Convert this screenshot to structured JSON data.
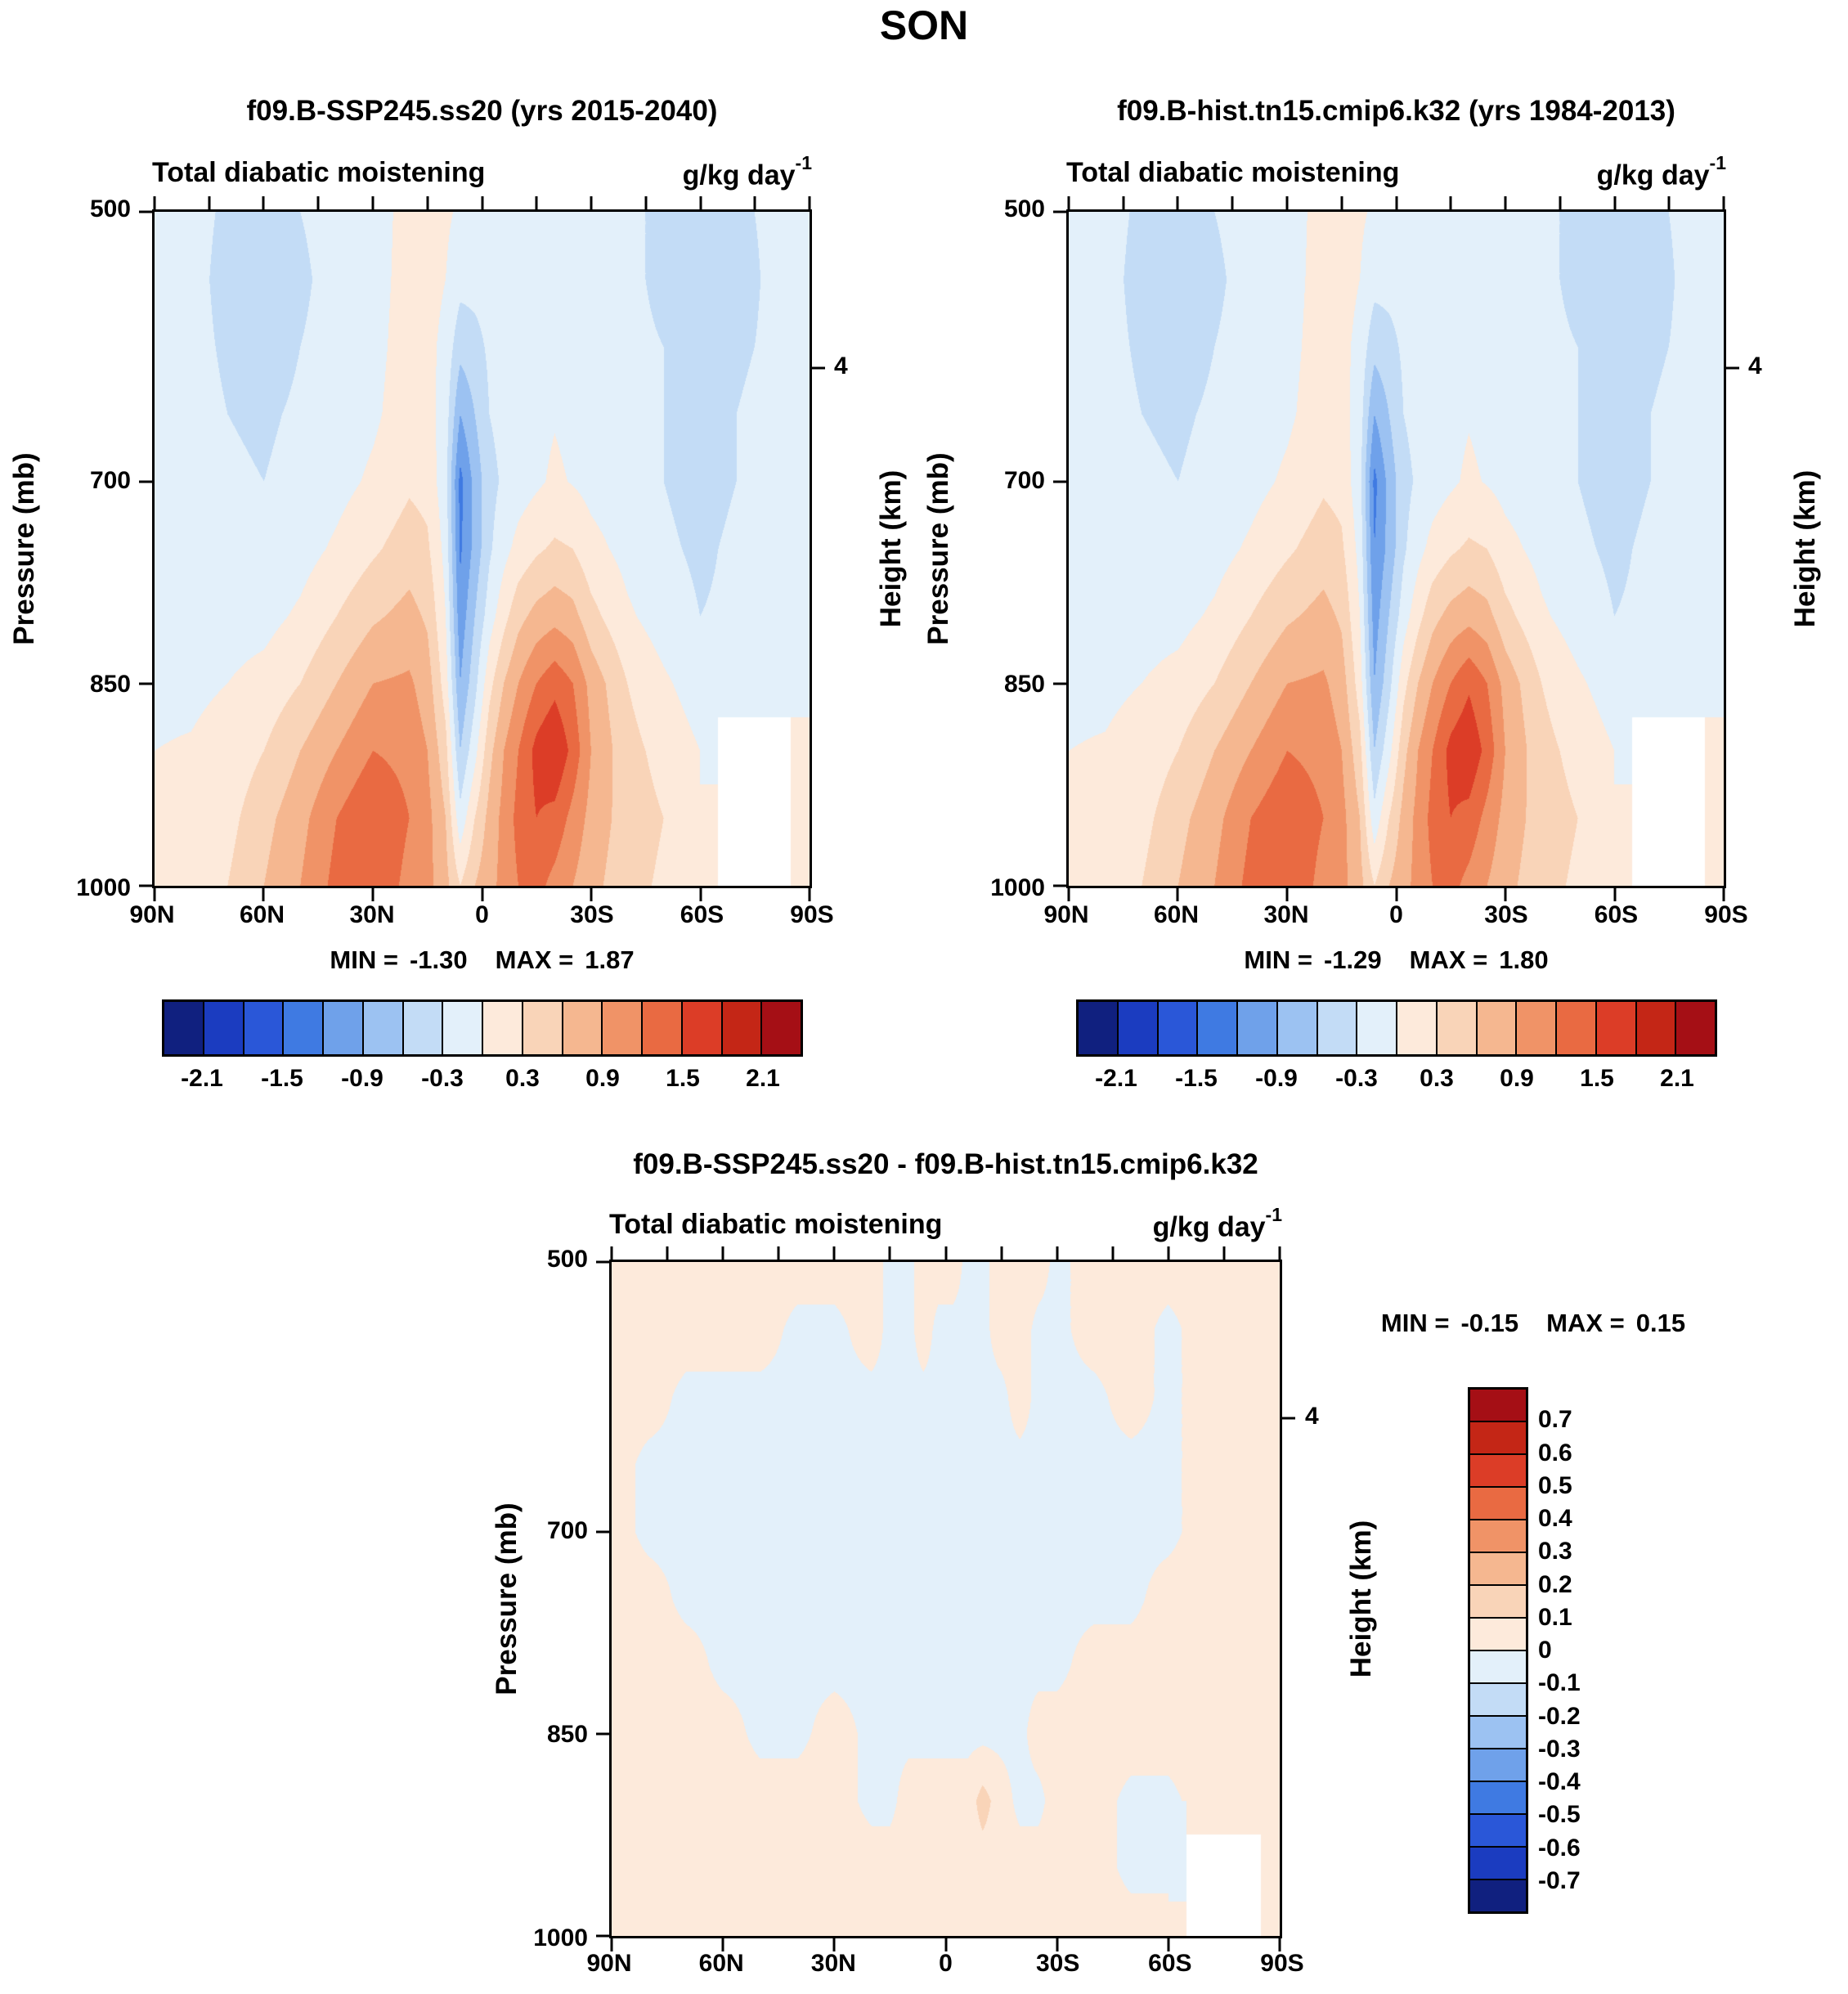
{
  "main_title": "SON",
  "palette16": [
    "#10207f",
    "#1b3cc0",
    "#2a57d8",
    "#3f7ae2",
    "#6fa1ea",
    "#9cc2f2",
    "#c3dcf6",
    "#e3f0fa",
    "#fdeadb",
    "#f9d4b8",
    "#f5b790",
    "#f09367",
    "#e96a42",
    "#dc3d27",
    "#c42616",
    "#a50f15"
  ],
  "labels": {
    "field_title": "Total diabatic moistening",
    "units_base": "g/kg day",
    "units_exponent": "-1",
    "min_label": "MIN =",
    "max_label": "MAX ="
  },
  "axes": {
    "pressure_axis_label": "Pressure (mb)",
    "height_axis_label": "Height (km)",
    "height_tick_label": "4",
    "height_tick_pressure": 616,
    "pressure_range": [
      500,
      1000
    ],
    "x_tick_labels": [
      "90N",
      "60N",
      "30N",
      "0",
      "30S",
      "60S",
      "90S"
    ],
    "x_tick_lats": [
      90,
      60,
      30,
      0,
      -30,
      -60,
      -90
    ],
    "y_tick_labels": [
      "500",
      "700",
      "850",
      "1000"
    ],
    "y_tick_pressures": [
      500,
      700,
      850,
      1000
    ],
    "top_minor_tick_count": 13
  },
  "colorbar_top": {
    "tick_labels": [
      "-2.1",
      "-1.5",
      "-0.9",
      "-0.3",
      "0.3",
      "0.9",
      "1.5",
      "2.1"
    ],
    "boundary_indices": [
      1,
      3,
      5,
      7,
      9,
      11,
      13,
      15
    ]
  },
  "colorbar_diff": {
    "tick_labels": [
      "0.7",
      "0.6",
      "0.5",
      "0.4",
      "0.3",
      "0.2",
      "0.1",
      "0",
      "-0.1",
      "-0.2",
      "-0.3",
      "-0.4",
      "-0.5",
      "-0.6",
      "-0.7"
    ]
  },
  "chart_data": [
    {
      "id": "left",
      "type": "heatmap",
      "title": "f09.B-SSP245.ss20 (yrs 2015-2040)",
      "subtitle": "Total diabatic moistening",
      "units": "g/kg day⁻¹",
      "min": -1.3,
      "max": 1.87,
      "min_text": "-1.30",
      "max_text": "1.87",
      "x_tick_labels": [
        "90N",
        "60N",
        "30N",
        "0",
        "30S",
        "60S",
        "90S"
      ],
      "y_tick_labels": [
        "500",
        "700",
        "850",
        "1000"
      ],
      "contour_levels": [
        -2.1,
        -1.8,
        -1.5,
        -1.2,
        -0.9,
        -0.6,
        -0.3,
        0,
        0.3,
        0.6,
        0.9,
        1.2,
        1.5,
        1.8,
        2.1
      ],
      "x_lats": [
        90,
        80,
        70,
        60,
        50,
        40,
        30,
        20,
        15,
        10,
        6,
        2,
        -2,
        -6,
        -10,
        -15,
        -20,
        -25,
        -30,
        -40,
        -50,
        -60,
        -70,
        -80,
        -90
      ],
      "y_pressures": [
        500,
        550,
        600,
        650,
        700,
        750,
        800,
        850,
        900,
        950,
        1000
      ],
      "values": [
        [
          -0.15,
          -0.2,
          -0.35,
          -0.45,
          -0.3,
          -0.2,
          -0.1,
          0.08,
          0.1,
          0.05,
          -0.05,
          -0.1,
          -0.15,
          -0.15,
          -0.15,
          -0.1,
          -0.08,
          -0.1,
          -0.15,
          -0.25,
          -0.35,
          -0.45,
          -0.35,
          -0.25,
          -0.2
        ],
        [
          -0.15,
          -0.2,
          -0.4,
          -0.5,
          -0.35,
          -0.2,
          -0.1,
          0.1,
          0.12,
          0,
          -0.2,
          -0.2,
          -0.18,
          -0.15,
          -0.15,
          -0.1,
          -0.08,
          -0.1,
          -0.15,
          -0.25,
          -0.35,
          -0.5,
          -0.4,
          -0.25,
          -0.2
        ],
        [
          -0.15,
          -0.2,
          -0.35,
          -0.45,
          -0.3,
          -0.2,
          -0.08,
          0.12,
          0.1,
          -0.1,
          -0.5,
          -0.4,
          -0.25,
          -0.2,
          -0.15,
          -0.1,
          -0.05,
          -0.1,
          -0.15,
          -0.25,
          -0.3,
          -0.45,
          -0.35,
          -0.25,
          -0.2
        ],
        [
          -0.12,
          -0.18,
          -0.3,
          -0.35,
          -0.25,
          -0.15,
          -0.05,
          0.15,
          0.12,
          -0.15,
          -0.9,
          -0.6,
          -0.3,
          -0.2,
          -0.15,
          -0.08,
          -0.02,
          -0.08,
          -0.12,
          -0.2,
          -0.3,
          -0.4,
          -0.3,
          -0.2,
          -0.15
        ],
        [
          -0.12,
          -0.15,
          -0.25,
          -0.3,
          -0.2,
          -0.1,
          0.05,
          0.25,
          0.2,
          -0.2,
          -1.3,
          -0.8,
          -0.4,
          -0.25,
          -0.15,
          -0.05,
          0.05,
          -0.02,
          -0.1,
          -0.2,
          -0.3,
          -0.4,
          -0.3,
          -0.2,
          -0.15
        ],
        [
          -0.1,
          -0.12,
          -0.2,
          -0.22,
          -0.12,
          0.05,
          0.25,
          0.45,
          0.35,
          -0.1,
          -1.25,
          -0.8,
          -0.35,
          -0.1,
          0.1,
          0.25,
          0.35,
          0.3,
          0.1,
          -0.1,
          -0.25,
          -0.35,
          -0.25,
          -0.18,
          -0.12
        ],
        [
          -0.08,
          -0.1,
          -0.12,
          -0.1,
          0.05,
          0.3,
          0.55,
          0.7,
          0.55,
          0,
          -1.1,
          -0.6,
          -0.15,
          0.2,
          0.5,
          0.7,
          0.8,
          0.7,
          0.4,
          0.05,
          -0.15,
          -0.3,
          -0.25,
          -0.15,
          -0.1
        ],
        [
          -0.05,
          -0.05,
          0,
          0.1,
          0.3,
          0.6,
          0.9,
          0.95,
          0.75,
          0.15,
          -0.9,
          -0.4,
          0.2,
          0.6,
          0.9,
          1.2,
          1.4,
          1.2,
          0.8,
          0.3,
          0.05,
          -0.15,
          -0.15,
          -0.1,
          -0.05
        ],
        [
          0,
          0.02,
          0.1,
          0.3,
          0.6,
          0.9,
          1.2,
          1.1,
          0.9,
          0.4,
          -0.6,
          -0.1,
          0.5,
          0.9,
          1.2,
          1.6,
          1.8,
          1.4,
          0.9,
          0.4,
          0.2,
          0,
          null,
          null,
          0.05
        ],
        [
          0.02,
          0.05,
          0.2,
          0.5,
          0.8,
          1.2,
          1.5,
          1.2,
          1.0,
          0.6,
          -0.2,
          0.3,
          0.7,
          1.0,
          1.3,
          1.5,
          1.4,
          1.1,
          0.8,
          0.45,
          0.3,
          0.1,
          null,
          null,
          0.05
        ],
        [
          0.05,
          0.1,
          0.3,
          0.6,
          0.9,
          1.3,
          1.45,
          1.1,
          1.0,
          0.7,
          0.3,
          0.6,
          0.8,
          1.0,
          1.2,
          1.3,
          1.1,
          0.9,
          0.7,
          0.4,
          0.25,
          0.1,
          null,
          null,
          0.05
        ]
      ]
    },
    {
      "id": "right",
      "type": "heatmap",
      "title": "f09.B-hist.tn15.cmip6.k32 (yrs 1984-2013)",
      "subtitle": "Total diabatic moistening",
      "units": "g/kg day⁻¹",
      "min": -1.29,
      "max": 1.8,
      "min_text": "-1.29",
      "max_text": "1.80",
      "x_tick_labels": [
        "90N",
        "60N",
        "30N",
        "0",
        "30S",
        "60S",
        "90S"
      ],
      "y_tick_labels": [
        "500",
        "700",
        "850",
        "1000"
      ],
      "contour_levels": [
        -2.1,
        -1.8,
        -1.5,
        -1.2,
        -0.9,
        -0.6,
        -0.3,
        0,
        0.3,
        0.6,
        0.9,
        1.2,
        1.5,
        1.8,
        2.1
      ],
      "x_lats": [
        90,
        80,
        70,
        60,
        50,
        40,
        30,
        20,
        15,
        10,
        6,
        2,
        -2,
        -6,
        -10,
        -15,
        -20,
        -25,
        -30,
        -40,
        -50,
        -60,
        -70,
        -80,
        -90
      ],
      "y_pressures": [
        500,
        550,
        600,
        650,
        700,
        750,
        800,
        850,
        900,
        950,
        1000
      ],
      "values": [
        [
          -0.15,
          -0.2,
          -0.35,
          -0.5,
          -0.3,
          -0.2,
          -0.1,
          0.08,
          0.1,
          0.05,
          -0.05,
          -0.1,
          -0.15,
          -0.15,
          -0.15,
          -0.1,
          -0.08,
          -0.1,
          -0.15,
          -0.25,
          -0.35,
          -0.45,
          -0.35,
          -0.25,
          -0.2
        ],
        [
          -0.15,
          -0.2,
          -0.4,
          -0.5,
          -0.35,
          -0.2,
          -0.1,
          0.1,
          0.12,
          0,
          -0.2,
          -0.2,
          -0.18,
          -0.15,
          -0.15,
          -0.1,
          -0.08,
          -0.1,
          -0.15,
          -0.25,
          -0.35,
          -0.5,
          -0.4,
          -0.25,
          -0.2
        ],
        [
          -0.15,
          -0.2,
          -0.35,
          -0.45,
          -0.3,
          -0.2,
          -0.08,
          0.12,
          0.1,
          -0.1,
          -0.5,
          -0.4,
          -0.25,
          -0.2,
          -0.15,
          -0.1,
          -0.05,
          -0.1,
          -0.15,
          -0.25,
          -0.3,
          -0.45,
          -0.35,
          -0.25,
          -0.2
        ],
        [
          -0.12,
          -0.18,
          -0.3,
          -0.35,
          -0.25,
          -0.15,
          -0.05,
          0.15,
          0.12,
          -0.15,
          -0.9,
          -0.6,
          -0.3,
          -0.2,
          -0.15,
          -0.08,
          -0.02,
          -0.08,
          -0.12,
          -0.2,
          -0.3,
          -0.4,
          -0.3,
          -0.2,
          -0.15
        ],
        [
          -0.12,
          -0.15,
          -0.25,
          -0.3,
          -0.2,
          -0.1,
          0.05,
          0.25,
          0.2,
          -0.2,
          -1.29,
          -0.8,
          -0.4,
          -0.25,
          -0.15,
          -0.05,
          0.05,
          -0.02,
          -0.1,
          -0.2,
          -0.3,
          -0.4,
          -0.3,
          -0.2,
          -0.15
        ],
        [
          -0.1,
          -0.12,
          -0.2,
          -0.22,
          -0.12,
          0.05,
          0.25,
          0.45,
          0.35,
          -0.1,
          -1.2,
          -0.8,
          -0.35,
          -0.1,
          0.1,
          0.25,
          0.35,
          0.3,
          0.1,
          -0.1,
          -0.25,
          -0.35,
          -0.25,
          -0.18,
          -0.12
        ],
        [
          -0.08,
          -0.1,
          -0.12,
          -0.1,
          0.05,
          0.3,
          0.55,
          0.7,
          0.55,
          0,
          -1.05,
          -0.6,
          -0.15,
          0.2,
          0.5,
          0.7,
          0.8,
          0.7,
          0.4,
          0.05,
          -0.15,
          -0.3,
          -0.25,
          -0.15,
          -0.1
        ],
        [
          -0.05,
          -0.05,
          0,
          0.1,
          0.3,
          0.6,
          0.9,
          0.95,
          0.75,
          0.15,
          -0.9,
          -0.4,
          0.2,
          0.6,
          0.9,
          1.2,
          1.45,
          1.2,
          0.8,
          0.3,
          0.05,
          -0.15,
          -0.15,
          -0.1,
          -0.05
        ],
        [
          0,
          0.02,
          0.1,
          0.3,
          0.6,
          0.9,
          1.2,
          1.1,
          0.9,
          0.4,
          -0.6,
          -0.1,
          0.5,
          0.9,
          1.2,
          1.6,
          1.75,
          1.4,
          0.9,
          0.4,
          0.2,
          0,
          null,
          null,
          0.05
        ],
        [
          0.02,
          0.05,
          0.2,
          0.5,
          0.8,
          1.2,
          1.45,
          1.2,
          1.0,
          0.6,
          -0.2,
          0.3,
          0.7,
          1.0,
          1.3,
          1.5,
          1.4,
          1.1,
          0.8,
          0.45,
          0.3,
          0.1,
          null,
          null,
          0.05
        ],
        [
          0.05,
          0.1,
          0.3,
          0.6,
          0.9,
          1.3,
          1.45,
          1.1,
          1.0,
          0.7,
          0.3,
          0.6,
          0.8,
          1.0,
          1.2,
          1.3,
          1.1,
          0.9,
          0.7,
          0.4,
          0.25,
          0.1,
          null,
          null,
          0.05
        ]
      ]
    },
    {
      "id": "diff",
      "type": "heatmap",
      "title": "f09.B-SSP245.ss20 - f09.B-hist.tn15.cmip6.k32",
      "subtitle": "Total diabatic moistening",
      "units": "g/kg day⁻¹",
      "min": -0.15,
      "max": 0.15,
      "min_text": "-0.15",
      "max_text": "0.15",
      "x_tick_labels": [
        "90N",
        "60N",
        "30N",
        "0",
        "30S",
        "60S",
        "90S"
      ],
      "y_tick_labels": [
        "500",
        "700",
        "850",
        "1000"
      ],
      "contour_levels": [
        -0.7,
        -0.6,
        -0.5,
        -0.4,
        -0.3,
        -0.2,
        -0.1,
        0,
        0.1,
        0.2,
        0.3,
        0.4,
        0.5,
        0.6,
        0.7
      ],
      "x_lats": [
        90,
        80,
        70,
        60,
        50,
        40,
        30,
        20,
        15,
        10,
        6,
        2,
        -2,
        -6,
        -10,
        -15,
        -20,
        -25,
        -30,
        -40,
        -50,
        -60,
        -70,
        -80,
        -90
      ],
      "y_pressures": [
        500,
        550,
        600,
        650,
        700,
        750,
        800,
        850,
        900,
        950,
        1000
      ],
      "values": [
        [
          0.05,
          0.05,
          0.05,
          0.05,
          0.05,
          0.05,
          0.05,
          0.05,
          -0.03,
          -0.03,
          0.05,
          0.05,
          0.05,
          -0.03,
          -0.03,
          0.05,
          0.05,
          0.05,
          -0.03,
          0.05,
          0.05,
          0.05,
          0.05,
          0.05,
          0.05
        ],
        [
          0.05,
          0.05,
          0.05,
          0.05,
          0.05,
          -0.03,
          -0.03,
          0.05,
          -0.03,
          -0.03,
          0.05,
          -0.03,
          -0.03,
          -0.03,
          -0.03,
          0.05,
          0.05,
          -0.03,
          -0.03,
          0.05,
          0.05,
          -0.03,
          0.05,
          0.05,
          0.05
        ],
        [
          0.05,
          0.05,
          -0.03,
          -0.03,
          -0.03,
          -0.03,
          -0.03,
          -0.03,
          -0.03,
          -0.03,
          -0.03,
          -0.03,
          -0.03,
          -0.03,
          -0.03,
          -0.03,
          0.05,
          -0.03,
          -0.03,
          -0.03,
          0.05,
          -0.03,
          0.05,
          0.05,
          0.05
        ],
        [
          0.05,
          -0.03,
          -0.03,
          -0.03,
          -0.03,
          -0.03,
          -0.03,
          -0.03,
          -0.03,
          -0.03,
          -0.03,
          -0.03,
          -0.03,
          -0.03,
          -0.03,
          -0.03,
          -0.03,
          -0.03,
          -0.03,
          -0.03,
          -0.03,
          -0.03,
          0.05,
          0.05,
          0.05
        ],
        [
          0.05,
          -0.03,
          -0.03,
          -0.03,
          -0.03,
          -0.03,
          -0.03,
          -0.03,
          -0.03,
          -0.03,
          -0.03,
          -0.03,
          -0.03,
          -0.03,
          -0.03,
          -0.03,
          -0.03,
          -0.03,
          -0.03,
          -0.03,
          -0.03,
          -0.03,
          0.05,
          0.05,
          0.05
        ],
        [
          0.05,
          0.05,
          -0.03,
          -0.03,
          -0.03,
          -0.03,
          -0.03,
          -0.03,
          -0.03,
          -0.03,
          -0.03,
          -0.03,
          -0.03,
          -0.03,
          -0.03,
          -0.03,
          -0.03,
          -0.03,
          -0.03,
          -0.03,
          -0.03,
          0.05,
          0.05,
          0.05,
          0.05
        ],
        [
          0.05,
          0.05,
          0.05,
          -0.03,
          -0.03,
          -0.03,
          -0.03,
          -0.03,
          -0.03,
          -0.03,
          -0.03,
          -0.03,
          -0.03,
          -0.03,
          -0.03,
          -0.03,
          -0.03,
          -0.03,
          -0.03,
          0.05,
          0.05,
          0.05,
          0.05,
          0.05,
          0.05
        ],
        [
          0.05,
          0.05,
          0.05,
          0.05,
          -0.03,
          -0.03,
          0.05,
          -0.03,
          -0.03,
          -0.03,
          -0.03,
          -0.03,
          -0.03,
          -0.03,
          -0.03,
          -0.03,
          -0.03,
          0.05,
          0.05,
          0.05,
          0.05,
          0.05,
          0.05,
          0.05,
          0.05
        ],
        [
          0.05,
          0.05,
          0.05,
          0.05,
          0.05,
          0.05,
          0.05,
          -0.03,
          -0.03,
          0.05,
          0.05,
          0.05,
          0.05,
          0.05,
          0.14,
          0.05,
          -0.03,
          -0.03,
          0.05,
          0.05,
          -0.03,
          -0.03,
          0.05,
          0.05,
          0.05
        ],
        [
          0.05,
          0.05,
          0.05,
          0.05,
          0.05,
          0.05,
          0.05,
          0.05,
          0.05,
          0.05,
          0.05,
          0.05,
          0.05,
          0.05,
          0.05,
          0.05,
          0.05,
          0.05,
          0.05,
          0.05,
          -0.03,
          -0.03,
          null,
          null,
          0.05
        ],
        [
          0.05,
          0.05,
          0.05,
          0.05,
          0.05,
          0.05,
          0.05,
          0.05,
          0.05,
          0.05,
          0.05,
          0.05,
          0.05,
          0.05,
          0.05,
          0.05,
          0.05,
          0.05,
          0.05,
          0.05,
          0.05,
          0.05,
          null,
          null,
          0.05
        ]
      ]
    }
  ]
}
